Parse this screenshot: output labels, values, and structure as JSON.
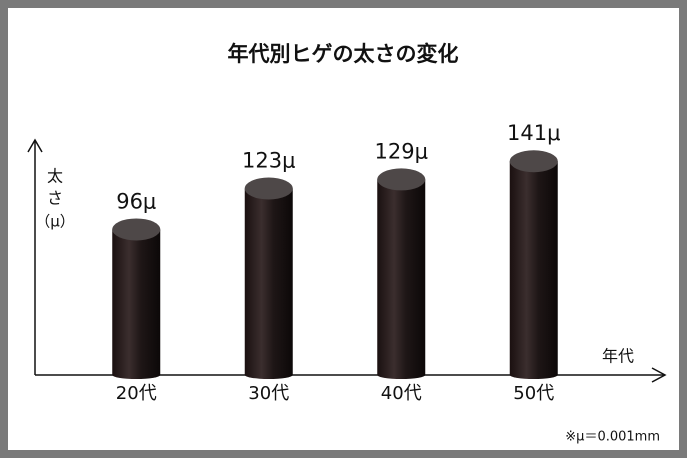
{
  "chart_data": {
    "type": "bar",
    "title": "年代別ヒゲの太さの変化",
    "categories": [
      "20代",
      "30代",
      "40代",
      "50代"
    ],
    "values": [
      96,
      123,
      129,
      141
    ],
    "value_labels": [
      "96μ",
      "123μ",
      "129μ",
      "141μ"
    ],
    "y_label": [
      "太",
      "さ",
      "（μ）"
    ],
    "x_label": "年代",
    "note": "※μ＝0.001mm",
    "color": "#2a1f1f",
    "ylim": [
      0,
      155
    ]
  }
}
